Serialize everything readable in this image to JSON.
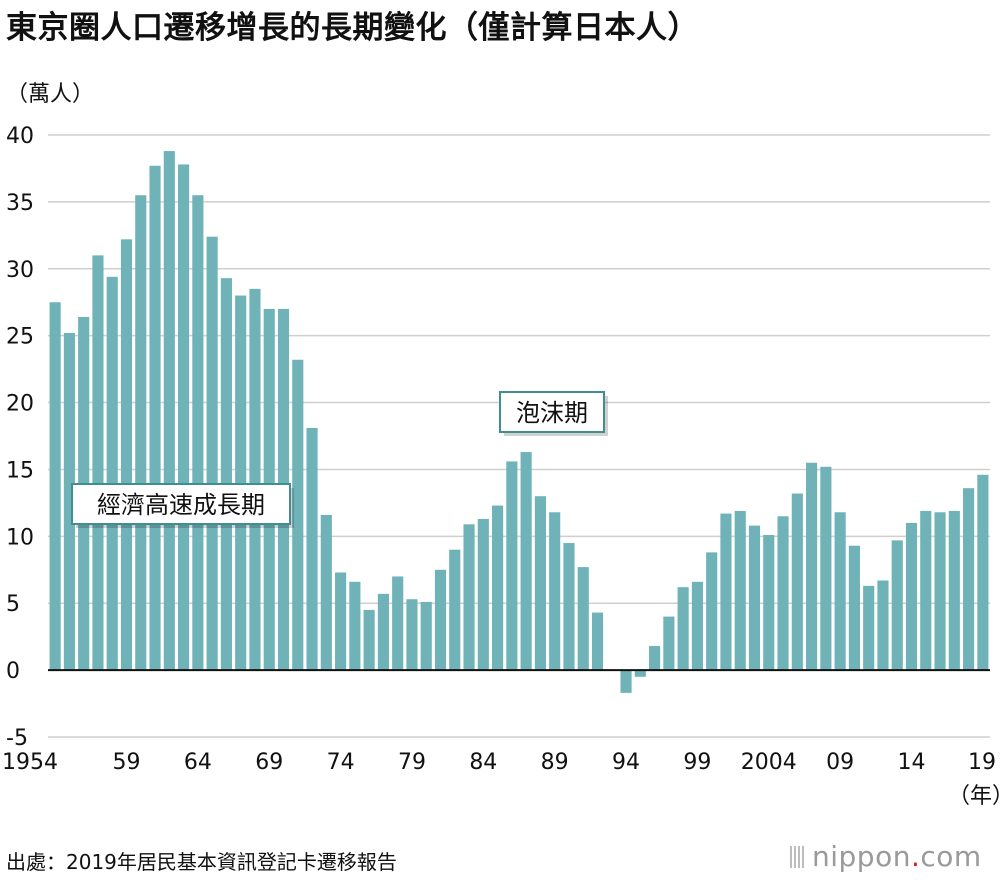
{
  "header": {
    "title": "東京圈人口遷移增長的長期變化（僅計算日本人）",
    "y_unit": "（萬人）",
    "x_unit": "（年）"
  },
  "footer": {
    "source": "出處：2019年居民基本資訊登記卡遷移報告",
    "logo_main": "nippon",
    "logo_dot": ".",
    "logo_tld": "com"
  },
  "annotations": [
    {
      "text": "經濟高速成長期",
      "index": 10
    },
    {
      "text": "泡沫期",
      "index": 32
    }
  ],
  "colors": {
    "bar": "#6fb3b8",
    "grid": "#cfcfcf",
    "zero_line": "#111111",
    "annotation_border": "#3f8f91"
  },
  "chart_data": {
    "type": "bar",
    "title": "東京圈人口遷移增長的長期變化（僅計算日本人）",
    "ylabel": "（萬人）",
    "xlabel": "（年）",
    "ylim": [
      -5,
      40
    ],
    "yticks": [
      40,
      35,
      30,
      25,
      20,
      15,
      10,
      5,
      0,
      -5
    ],
    "x_start_year": 1954,
    "x_tick_labels": [
      {
        "index": 0,
        "label": "1954"
      },
      {
        "index": 5,
        "label": "59"
      },
      {
        "index": 10,
        "label": "64"
      },
      {
        "index": 15,
        "label": "69"
      },
      {
        "index": 20,
        "label": "74"
      },
      {
        "index": 25,
        "label": "79"
      },
      {
        "index": 30,
        "label": "84"
      },
      {
        "index": 35,
        "label": "89"
      },
      {
        "index": 40,
        "label": "94"
      },
      {
        "index": 45,
        "label": "99"
      },
      {
        "index": 50,
        "label": "2004"
      },
      {
        "index": 55,
        "label": "09"
      },
      {
        "index": 60,
        "label": "14"
      },
      {
        "index": 65,
        "label": "19"
      }
    ],
    "values": [
      27.5,
      25.2,
      26.4,
      31.0,
      29.4,
      32.2,
      35.5,
      37.7,
      38.8,
      37.8,
      35.5,
      32.4,
      29.3,
      28.0,
      28.5,
      27.0,
      27.0,
      23.2,
      18.1,
      11.6,
      7.3,
      6.6,
      4.5,
      5.7,
      7.0,
      5.3,
      5.1,
      7.5,
      9.0,
      10.9,
      11.3,
      12.3,
      15.6,
      16.3,
      13.0,
      11.8,
      9.5,
      7.7,
      4.3,
      0.0,
      -1.7,
      -0.5,
      1.8,
      4.0,
      6.2,
      6.6,
      8.8,
      11.7,
      11.9,
      10.8,
      10.1,
      11.5,
      13.2,
      15.5,
      15.2,
      11.8,
      9.3,
      6.3,
      6.7,
      9.7,
      11.0,
      11.9,
      11.8,
      11.9,
      13.6,
      14.6
    ]
  }
}
